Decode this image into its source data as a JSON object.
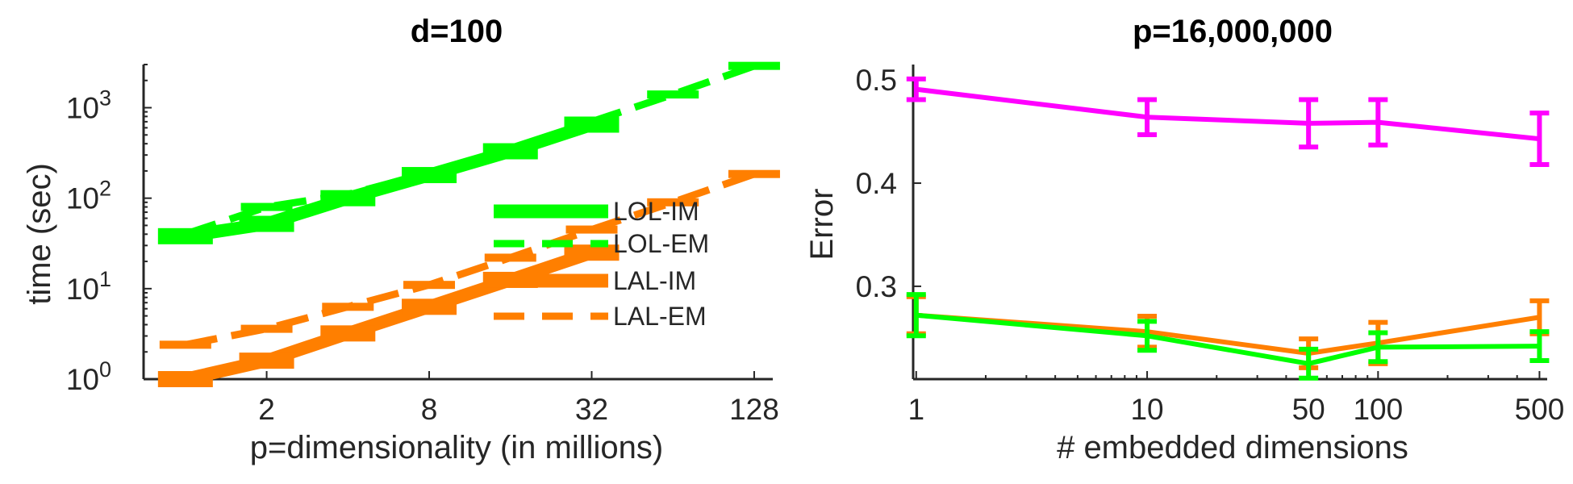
{
  "chart_data": [
    {
      "type": "line",
      "title": "d=100",
      "xlabel": "p=dimensionality (in millions)",
      "ylabel": "time (sec)",
      "x_scale": "log2",
      "y_scale": "log10",
      "xlim": [
        0.7,
        150
      ],
      "ylim": [
        1,
        3000
      ],
      "x_ticks": [
        {
          "value": 2,
          "label": "2"
        },
        {
          "value": 8,
          "label": "8"
        },
        {
          "value": 32,
          "label": "32"
        },
        {
          "value": 128,
          "label": "128"
        }
      ],
      "y_ticks": [
        {
          "value": 1,
          "base": "10",
          "exp": "0"
        },
        {
          "value": 10,
          "base": "10",
          "exp": "1"
        },
        {
          "value": 100,
          "base": "10",
          "exp": "2"
        },
        {
          "value": 1000,
          "base": "10",
          "exp": "3"
        }
      ],
      "legend_position": "middle-right",
      "series": [
        {
          "name": "LOL-IM",
          "color": "#00ff00",
          "style": "solid",
          "x": [
            1,
            2,
            4,
            8,
            16,
            32
          ],
          "y": [
            38,
            52,
            100,
            180,
            330,
            650
          ]
        },
        {
          "name": "LOL-EM",
          "color": "#00ff00",
          "style": "dashed",
          "x": [
            1,
            2,
            4,
            8,
            16,
            32,
            64,
            128
          ],
          "y": [
            40,
            80,
            110,
            190,
            340,
            700,
            1400,
            2900
          ]
        },
        {
          "name": "LAL-IM",
          "color": "#ff7f00",
          "style": "solid",
          "x": [
            1,
            2,
            4,
            8,
            16,
            32
          ],
          "y": [
            1,
            1.6,
            3.2,
            6.3,
            12.5,
            25
          ]
        },
        {
          "name": "LAL-EM",
          "color": "#ff7f00",
          "style": "dashed",
          "x": [
            1,
            2,
            4,
            8,
            16,
            32,
            64,
            128
          ],
          "y": [
            2.4,
            3.6,
            6.3,
            11,
            22,
            45,
            90,
            185
          ]
        }
      ]
    },
    {
      "type": "line",
      "title": "p=16,000,000",
      "xlabel": "# embedded dimensions",
      "ylabel": "Error",
      "x_scale": "log10",
      "xlim": [
        0.97,
        540
      ],
      "ylim": [
        0.21,
        0.515
      ],
      "x_ticks": [
        {
          "value": 1,
          "label": "1"
        },
        {
          "value": 10,
          "label": "10"
        },
        {
          "value": 50,
          "label": "50"
        },
        {
          "value": 100,
          "label": "100"
        },
        {
          "value": 500,
          "label": "500"
        }
      ],
      "y_ticks": [
        {
          "value": 0.3,
          "label": "0.3"
        },
        {
          "value": 0.4,
          "label": "0.4"
        },
        {
          "value": 0.5,
          "label": "0.5"
        }
      ],
      "series": [
        {
          "color": "#ff00ff",
          "x": [
            1,
            10,
            50,
            100,
            500
          ],
          "y": [
            0.491,
            0.464,
            0.458,
            0.459,
            0.443
          ],
          "err": [
            0.01,
            0.017,
            0.023,
            0.022,
            0.025
          ]
        },
        {
          "color": "#ff7f00",
          "x": [
            1,
            10,
            50,
            100,
            500
          ],
          "y": [
            0.272,
            0.256,
            0.235,
            0.245,
            0.27
          ],
          "err": [
            0.018,
            0.015,
            0.014,
            0.02,
            0.016
          ]
        },
        {
          "color": "#00ff00",
          "x": [
            1,
            10,
            50,
            100,
            500
          ],
          "y": [
            0.272,
            0.252,
            0.225,
            0.241,
            0.242
          ],
          "err": [
            0.02,
            0.014,
            0.014,
            0.014,
            0.014
          ]
        }
      ]
    }
  ]
}
